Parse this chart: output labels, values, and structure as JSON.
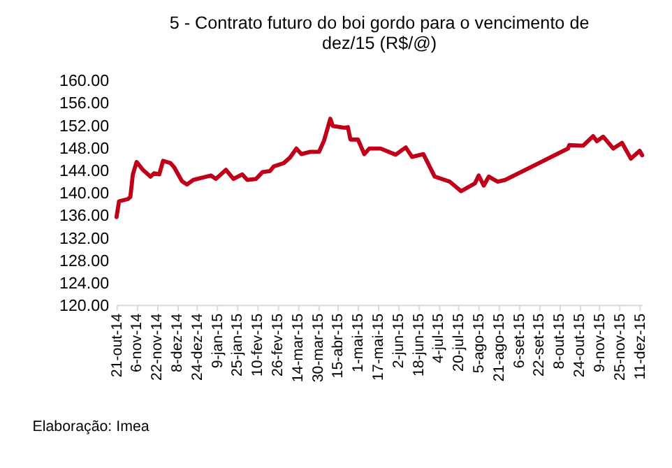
{
  "chart_data": {
    "type": "line",
    "title": "5 - Contrato futuro do boi gordo para o vencimento de dez/15 (R$/@)",
    "annotations": [
      "Elaboração: Imea"
    ],
    "x": [
      "2014-10-21",
      "2014-10-23",
      "2014-10-30",
      "2014-11-01",
      "2014-11-03",
      "2014-11-06",
      "2014-11-11",
      "2014-11-17",
      "2014-11-20",
      "2014-11-24",
      "2014-11-27",
      "2014-12-03",
      "2014-12-06",
      "2014-12-12",
      "2014-12-16",
      "2014-12-21",
      "2015-01-04",
      "2015-01-08",
      "2015-01-16",
      "2015-01-22",
      "2015-01-29",
      "2015-02-02",
      "2015-02-09",
      "2015-02-14",
      "2015-02-20",
      "2015-02-23",
      "2015-03-03",
      "2015-03-08",
      "2015-03-13",
      "2015-03-17",
      "2015-03-24",
      "2015-03-31",
      "2015-04-04",
      "2015-04-09",
      "2015-04-11",
      "2015-04-20",
      "2015-04-23",
      "2015-04-25",
      "2015-05-01",
      "2015-05-06",
      "2015-05-10",
      "2015-05-19",
      "2015-05-31",
      "2015-06-08",
      "2015-06-13",
      "2015-06-22",
      "2015-07-01",
      "2015-07-13",
      "2015-07-22",
      "2015-08-02",
      "2015-08-05",
      "2015-08-09",
      "2015-08-13",
      "2015-08-20",
      "2015-08-26",
      "2015-10-15",
      "2015-10-16",
      "2015-10-27",
      "2015-11-04",
      "2015-11-07",
      "2015-11-12",
      "2015-11-20",
      "2015-11-27",
      "2015-12-04",
      "2015-12-11",
      "2015-12-13"
    ],
    "series": [
      {
        "color": "#c00018",
        "values": [
          135.6,
          138.4,
          138.8,
          139.2,
          143.2,
          145.4,
          144.0,
          142.8,
          143.4,
          143.2,
          145.6,
          145.2,
          144.4,
          142.0,
          141.4,
          142.2,
          143.0,
          142.4,
          144.0,
          142.4,
          143.2,
          142.2,
          142.4,
          143.6,
          143.8,
          144.6,
          145.2,
          146.2,
          147.8,
          146.8,
          147.2,
          147.2,
          149.2,
          153.1,
          151.8,
          151.5,
          151.6,
          149.4,
          149.4,
          146.8,
          147.8,
          147.8,
          146.7,
          148.0,
          146.3,
          146.8,
          142.8,
          141.9,
          140.2,
          141.6,
          143.0,
          141.2,
          142.8,
          141.9,
          142.2,
          147.8,
          148.4,
          148.3,
          150.0,
          149.1,
          149.9,
          147.8,
          148.8,
          146.0,
          147.4,
          146.6
        ]
      }
    ],
    "xlim": [
      "2014-10-21",
      "2015-12-13"
    ],
    "xticks": [
      {
        "value": "2014-10-21",
        "label": "21-out-14"
      },
      {
        "value": "2014-11-06",
        "label": "6-nov-14"
      },
      {
        "value": "2014-11-22",
        "label": "22-nov-14"
      },
      {
        "value": "2014-12-08",
        "label": "8-dez-14"
      },
      {
        "value": "2014-12-24",
        "label": "24-dez-14"
      },
      {
        "value": "2015-01-09",
        "label": "9-jan-15"
      },
      {
        "value": "2015-01-25",
        "label": "25-jan-15"
      },
      {
        "value": "2015-02-10",
        "label": "10-fev-15"
      },
      {
        "value": "2015-02-26",
        "label": "26-fev-15"
      },
      {
        "value": "2015-03-14",
        "label": "14-mar-15"
      },
      {
        "value": "2015-03-30",
        "label": "30-mar-15"
      },
      {
        "value": "2015-04-15",
        "label": "15-abr-15"
      },
      {
        "value": "2015-05-01",
        "label": "1-mai-15"
      },
      {
        "value": "2015-05-17",
        "label": "17-mai-15"
      },
      {
        "value": "2015-06-02",
        "label": "2-jun-15"
      },
      {
        "value": "2015-06-18",
        "label": "18-jun-15"
      },
      {
        "value": "2015-07-04",
        "label": "4-jul-15"
      },
      {
        "value": "2015-07-20",
        "label": "20-jul-15"
      },
      {
        "value": "2015-08-05",
        "label": "5-ago-15"
      },
      {
        "value": "2015-08-21",
        "label": "21-ago-15"
      },
      {
        "value": "2015-09-06",
        "label": "6-set-15"
      },
      {
        "value": "2015-09-22",
        "label": "22-set-15"
      },
      {
        "value": "2015-10-08",
        "label": "8-out-15"
      },
      {
        "value": "2015-10-24",
        "label": "24-out-15"
      },
      {
        "value": "2015-11-09",
        "label": "9-nov-15"
      },
      {
        "value": "2015-11-25",
        "label": "25-nov-15"
      },
      {
        "value": "2015-12-11",
        "label": "11-dez-15"
      }
    ],
    "ylim": [
      120,
      160
    ],
    "yticks": [
      {
        "value": 120,
        "label": "120.00"
      },
      {
        "value": 124,
        "label": "124.00"
      },
      {
        "value": 128,
        "label": "128.00"
      },
      {
        "value": 132,
        "label": "132.00"
      },
      {
        "value": 136,
        "label": "136.00"
      },
      {
        "value": 140,
        "label": "140.00"
      },
      {
        "value": 144,
        "label": "144.00"
      },
      {
        "value": 148,
        "label": "148.00"
      },
      {
        "value": 152,
        "label": "152.00"
      },
      {
        "value": 156,
        "label": "156.00"
      },
      {
        "value": 160,
        "label": "160.00"
      }
    ],
    "grid": false,
    "legend": false,
    "marker": "none",
    "line_style": "solid"
  }
}
